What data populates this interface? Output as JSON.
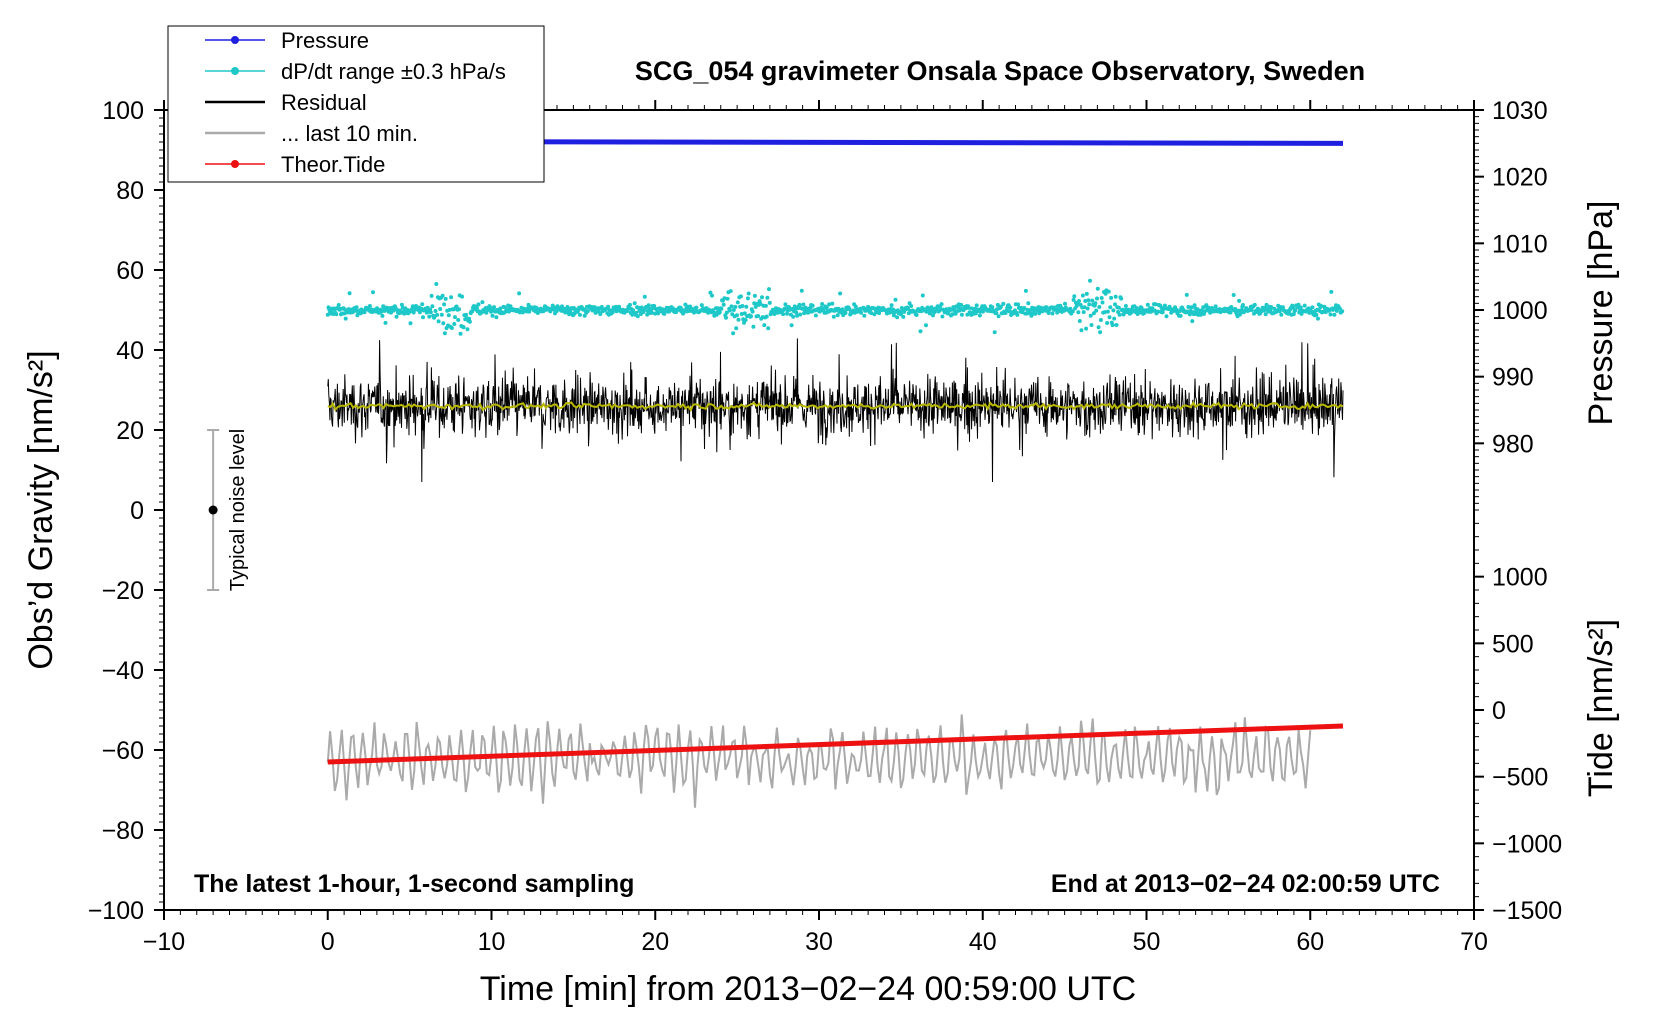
{
  "chart_data": {
    "type": "line",
    "title": "SCG_054 gravimeter Onsala Space Observatory, Sweden",
    "xlabel": "Time [min] from 2013−02−24 00:59:00 UTC",
    "ylabel_left": "Obs’d Gravity [nm/s²]",
    "ylabel_right_top": "Pressure [hPa]",
    "ylabel_right_bottom": "Tide [nm/s²]",
    "xlim": [
      -10,
      70
    ],
    "ylim_left": [
      -100,
      100
    ],
    "pressure_axis": {
      "range": [
        970,
        1030
      ],
      "ticks": [
        980,
        990,
        1000,
        1010,
        1020,
        1030
      ],
      "tick_labels": [
        "980",
        "990",
        "1000",
        "1010",
        "1020",
        "1030"
      ]
    },
    "tide_axis": {
      "range": [
        -1500,
        1500
      ],
      "ticks": [
        -1500,
        -1000,
        -500,
        0,
        500,
        1000
      ],
      "tick_labels": [
        "−1500",
        "−1000",
        "−500",
        "0",
        "500",
        "1000"
      ]
    },
    "x_ticks": [
      -10,
      0,
      10,
      20,
      30,
      40,
      50,
      60,
      70
    ],
    "x_tick_labels": [
      "−10",
      "0",
      "10",
      "20",
      "30",
      "40",
      "50",
      "60",
      "70"
    ],
    "y_ticks": [
      -100,
      -80,
      -60,
      -40,
      -20,
      0,
      20,
      40,
      60,
      80,
      100
    ],
    "y_tick_labels": [
      "−100",
      "−80",
      "−60",
      "−40",
      "−20",
      "0",
      "20",
      "40",
      "60",
      "80",
      "100"
    ],
    "legend": [
      {
        "label": "Pressure",
        "color": "#1f1fe0",
        "marker": "dot"
      },
      {
        "label": "dP/dt range ±0.3 hPa/s",
        "color": "#1fc8c8",
        "marker": "dot"
      },
      {
        "label": "Residual",
        "color": "#000000",
        "marker": "line"
      },
      {
        "label": "... last 10 min.",
        "color": "#aaaaaa",
        "marker": "line"
      },
      {
        "label": "Theor.Tide",
        "color": "#ee1111",
        "marker": "dot"
      }
    ],
    "series": [
      {
        "name": "Pressure",
        "axis": "pressure",
        "x": [
          0,
          62
        ],
        "values": [
          1025.3,
          1025.0
        ],
        "color": "#1f1fe0"
      },
      {
        "name": "dP/dt range ±0.3 hPa/s",
        "axis": "left",
        "x_range": [
          0,
          62
        ],
        "center": 50,
        "spread": 13,
        "color": "#1fc8c8"
      },
      {
        "name": "Residual",
        "axis": "left",
        "x_range": [
          0,
          62
        ],
        "center": 26,
        "spread_min": 7,
        "spread_max": 46,
        "color": "#000000"
      },
      {
        "name": "Residual running mean",
        "axis": "left",
        "x_range": [
          0,
          62
        ],
        "center": 26,
        "color": "#b8b800"
      },
      {
        "name": "... last 10 min.",
        "axis": "left",
        "x_range": [
          0,
          60
        ],
        "center": -62,
        "spread_min": -76,
        "spread_max": -48,
        "color": "#aaaaaa"
      },
      {
        "name": "Theor.Tide",
        "axis": "tide",
        "x": [
          0,
          62
        ],
        "values": [
          -390,
          -120
        ],
        "color": "#ee1111"
      }
    ],
    "noise_bar": {
      "label": "Typical noise level",
      "x": -7,
      "center": 0,
      "low": -20,
      "high": 20
    },
    "annotations": {
      "left": "The latest 1-hour, 1-second sampling",
      "right": "End at 2013−02−24 02:00:59 UTC"
    }
  }
}
